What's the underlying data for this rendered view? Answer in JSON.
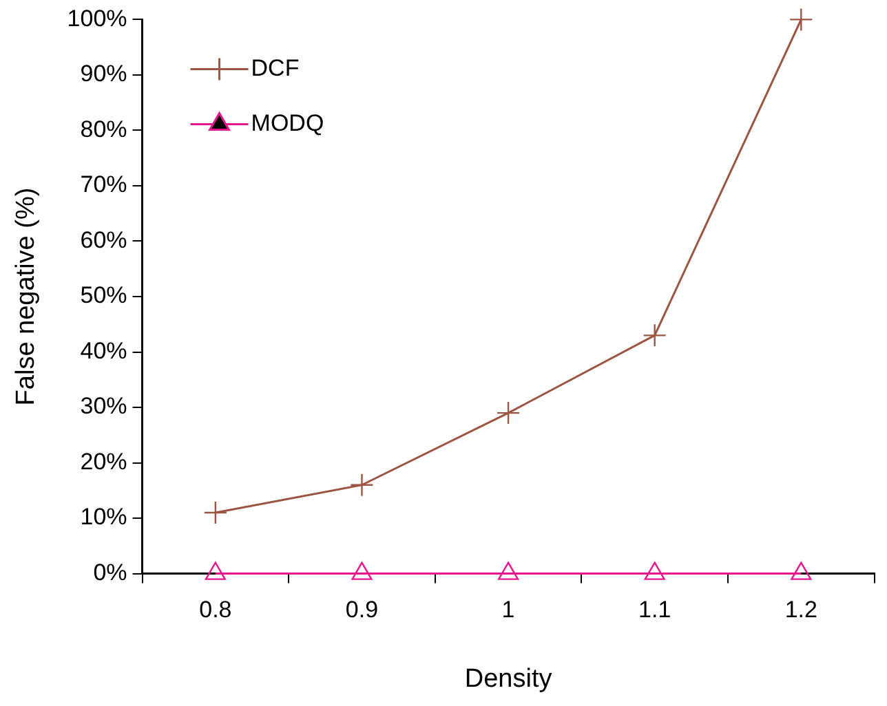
{
  "chart_data": {
    "type": "line",
    "xlabel": "Density",
    "ylabel": "False negative (%)",
    "categories": [
      "0.8",
      "0.9",
      "1",
      "1.1",
      "1.2"
    ],
    "series": [
      {
        "name": "DCF",
        "color": "#9c5543",
        "marker": "cross",
        "values": [
          11,
          16,
          29,
          43,
          100
        ]
      },
      {
        "name": "MODQ",
        "color": "#e6168c",
        "marker": "triangle",
        "values": [
          0,
          0,
          0,
          0,
          0
        ]
      }
    ],
    "ylim": [
      0,
      100
    ],
    "yticks": [
      {
        "value": 0,
        "label": "0%"
      },
      {
        "value": 10,
        "label": "10%"
      },
      {
        "value": 20,
        "label": "20%"
      },
      {
        "value": 30,
        "label": "30%"
      },
      {
        "value": 40,
        "label": "40%"
      },
      {
        "value": 50,
        "label": "50%"
      },
      {
        "value": 60,
        "label": "60%"
      },
      {
        "value": 70,
        "label": "70%"
      },
      {
        "value": 80,
        "label": "80%"
      },
      {
        "value": 90,
        "label": "90%"
      },
      {
        "value": 100,
        "label": "100%"
      }
    ],
    "grid": false,
    "legend": "top left",
    "line_style": "solid"
  }
}
